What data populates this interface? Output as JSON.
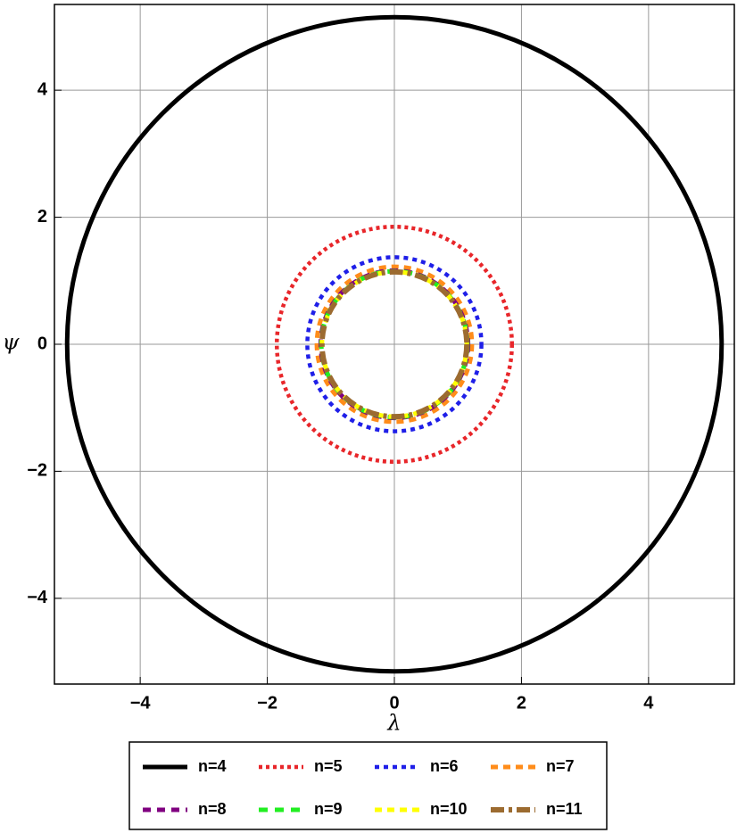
{
  "chart_data": {
    "type": "circle",
    "x_label": "λ",
    "y_label": "ψ",
    "xlim": [
      -5.35,
      5.35
    ],
    "ylim": [
      -5.35,
      5.35
    ],
    "xticks": [
      {
        "value": -4,
        "label": "−4"
      },
      {
        "value": -2,
        "label": "−2"
      },
      0,
      2,
      4
    ],
    "yticks": [
      {
        "value": -4,
        "label": "−4"
      },
      {
        "value": -2,
        "label": "−2"
      },
      0,
      2,
      4
    ],
    "grid": true,
    "legend": "bottom",
    "series": [
      {
        "name": "n=4",
        "color": "#000000",
        "style": "solid",
        "radius": 5.15
      },
      {
        "name": "n=5",
        "color": "#e8262a",
        "style": "dotted",
        "radius": 1.85
      },
      {
        "name": "n=6",
        "color": "#1f1fe8",
        "style": "dotted",
        "radius": 1.37
      },
      {
        "name": "n=7",
        "color": "#ff8c1a",
        "style": "dashed",
        "radius": 1.22
      },
      {
        "name": "n=8",
        "color": "#800080",
        "style": "dashed",
        "radius": 1.16
      },
      {
        "name": "n=9",
        "color": "#22ee22",
        "style": "dashed",
        "radius": 1.15
      },
      {
        "name": "n=10",
        "color": "#ffff00",
        "style": "dashed",
        "radius": 1.14
      },
      {
        "name": "n=11",
        "color": "#9c6b30",
        "style": "dash-dot",
        "radius": 1.14
      }
    ]
  }
}
